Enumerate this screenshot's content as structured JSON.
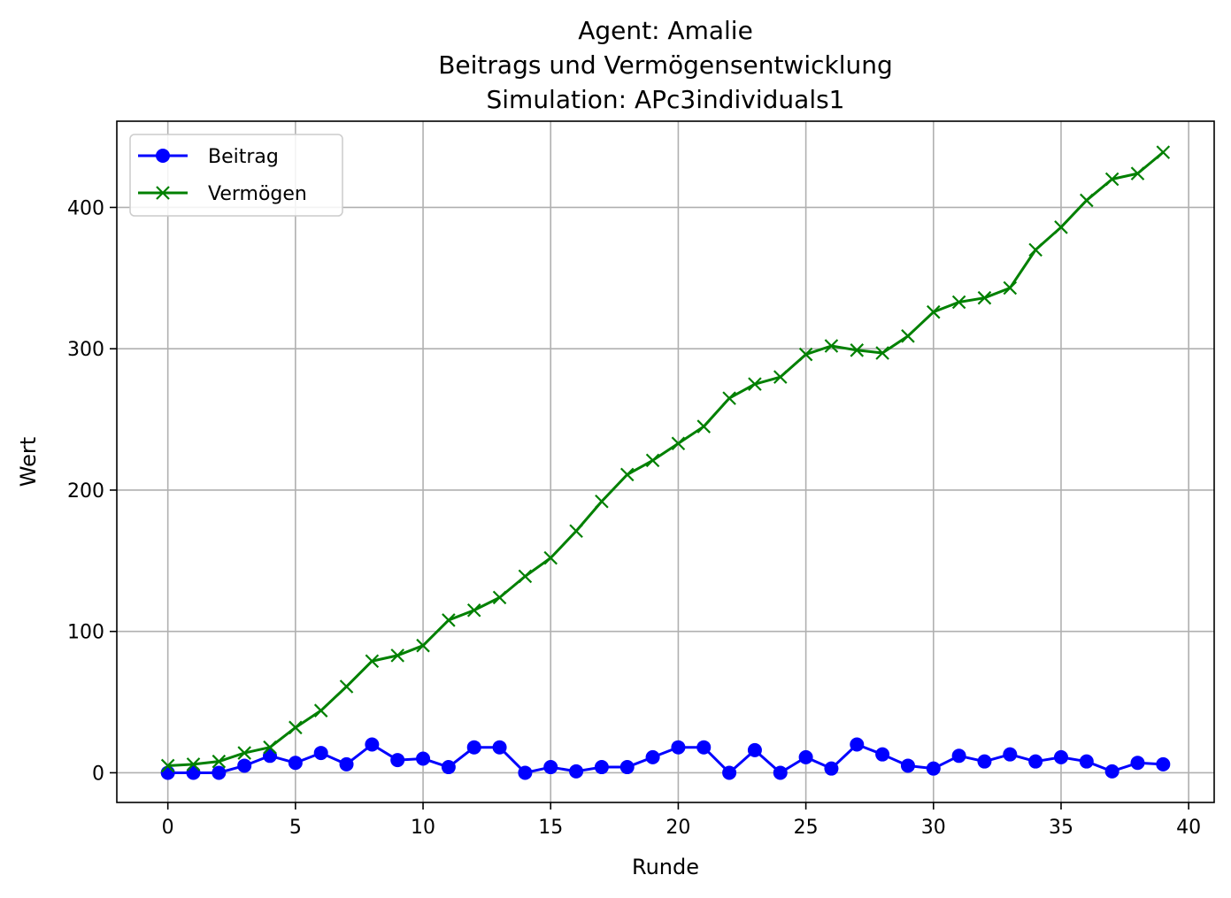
{
  "chart_data": {
    "type": "line",
    "title_lines": [
      "Agent: Amalie",
      "Beitrags und Vermögensentwicklung",
      "Simulation: APc3individuals1"
    ],
    "xlabel": "Runde",
    "ylabel": "Wert",
    "xlim": [
      -2,
      41
    ],
    "ylim": [
      -21,
      461
    ],
    "x_ticks": [
      0,
      5,
      10,
      15,
      20,
      25,
      30,
      35,
      40
    ],
    "y_ticks": [
      0,
      100,
      200,
      300,
      400
    ],
    "grid": true,
    "legend_position": "top-left",
    "x": [
      0,
      1,
      2,
      3,
      4,
      5,
      6,
      7,
      8,
      9,
      10,
      11,
      12,
      13,
      14,
      15,
      16,
      17,
      18,
      19,
      20,
      21,
      22,
      23,
      24,
      25,
      26,
      27,
      28,
      29,
      30,
      31,
      32,
      33,
      34,
      35,
      36,
      37,
      38,
      39
    ],
    "series": [
      {
        "name": "Beitrag",
        "color": "#0000ff",
        "marker": "circle",
        "values": [
          0,
          0,
          0,
          5,
          12,
          7,
          14,
          6,
          20,
          9,
          10,
          4,
          18,
          18,
          0,
          4,
          1,
          4,
          4,
          11,
          18,
          18,
          0,
          16,
          0,
          11,
          3,
          20,
          13,
          5,
          3,
          12,
          8,
          13,
          8,
          11,
          8,
          1,
          7,
          6
        ]
      },
      {
        "name": "Vermögen",
        "color": "#008000",
        "marker": "x",
        "values": [
          5,
          6,
          8,
          14,
          18,
          32,
          44,
          61,
          79,
          83,
          90,
          108,
          115,
          124,
          139,
          152,
          171,
          192,
          211,
          221,
          233,
          245,
          265,
          275,
          280,
          296,
          302,
          299,
          297,
          309,
          326,
          333,
          336,
          343,
          370,
          386,
          405,
          420,
          424,
          439
        ]
      }
    ]
  }
}
